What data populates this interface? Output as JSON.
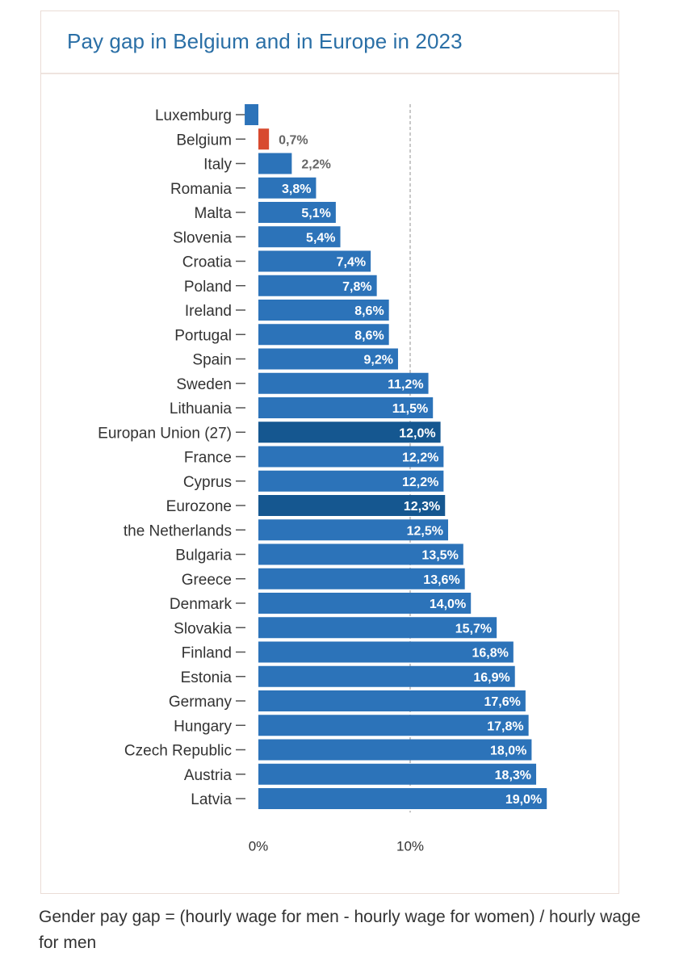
{
  "header": {
    "title": "Pay gap in Belgium and in Europe in 2023"
  },
  "chart_data": {
    "type": "bar",
    "orientation": "horizontal",
    "title": "Pay gap in Belgium and in Europe in 2023",
    "xlabel": "",
    "ylabel": "",
    "xlim": [
      -0.9,
      19.5
    ],
    "x_ticks": [
      {
        "value": 0,
        "label": "0%"
      },
      {
        "value": 10,
        "label": "10%"
      }
    ],
    "reference_line": {
      "value": 10,
      "style": "dashed"
    },
    "colors": {
      "default": "#2c73b9",
      "highlight": "#d84a2f",
      "aggregate": "#155790",
      "label_inside": "#ffffff",
      "label_outside": "#666666",
      "axis_text": "#333333",
      "grid": "#aaaaaa"
    },
    "categories": [
      "Luxemburg",
      "Belgium",
      "Italy",
      "Romania",
      "Malta",
      "Slovenia",
      "Croatia",
      "Poland",
      "Ireland",
      "Portugal",
      "Spain",
      "Sweden",
      "Lithuania",
      "Europan Union (27)",
      "France",
      "Cyprus",
      "Eurozone",
      "the Netherlands",
      "Bulgaria",
      "Greece",
      "Denmark",
      "Slovakia",
      "Finland",
      "Estonia",
      "Germany",
      "Hungary",
      "Czech Republic",
      "Austria",
      "Latvia"
    ],
    "values": [
      -0.9,
      0.7,
      2.2,
      3.8,
      5.1,
      5.4,
      7.4,
      7.8,
      8.6,
      8.6,
      9.2,
      11.2,
      11.5,
      12.0,
      12.2,
      12.2,
      12.3,
      12.5,
      13.5,
      13.6,
      14.0,
      15.7,
      16.8,
      16.9,
      17.6,
      17.8,
      18.0,
      18.3,
      19.0
    ],
    "value_labels": [
      "",
      "0,7%",
      "2,2%",
      "3,8%",
      "5,1%",
      "5,4%",
      "7,4%",
      "7,8%",
      "8,6%",
      "8,6%",
      "9,2%",
      "11,2%",
      "11,5%",
      "12,0%",
      "12,2%",
      "12,2%",
      "12,3%",
      "12,5%",
      "13,5%",
      "13,6%",
      "14,0%",
      "15,7%",
      "16,8%",
      "16,9%",
      "17,6%",
      "17,8%",
      "18,0%",
      "18,3%",
      "19,0%"
    ],
    "bar_roles": [
      "default",
      "highlight",
      "default",
      "default",
      "default",
      "default",
      "default",
      "default",
      "default",
      "default",
      "default",
      "default",
      "default",
      "aggregate",
      "default",
      "default",
      "aggregate",
      "default",
      "default",
      "default",
      "default",
      "default",
      "default",
      "default",
      "default",
      "default",
      "default",
      "default",
      "default"
    ]
  },
  "footnote": "Gender pay gap = (hourly wage for men - hourly wage for women) / hourly wage for men"
}
